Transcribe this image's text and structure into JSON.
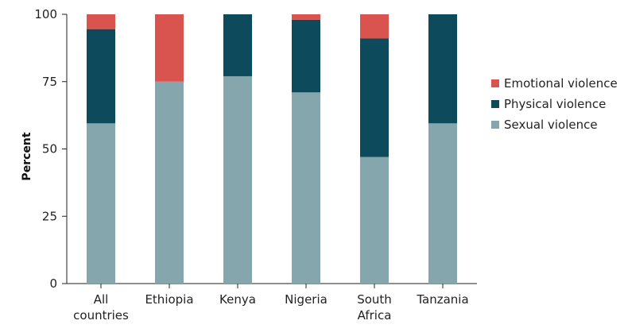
{
  "chart_data": {
    "type": "bar",
    "stacked": true,
    "categories": [
      [
        "All",
        "countries"
      ],
      [
        "Ethiopia"
      ],
      [
        "Kenya"
      ],
      [
        "Nigeria"
      ],
      [
        "South",
        "Africa"
      ],
      [
        "Tanzania"
      ]
    ],
    "series": [
      {
        "name": "Sexual violence",
        "color": "#84a6ac",
        "values": [
          59.5,
          75,
          77,
          71,
          47,
          59.5
        ]
      },
      {
        "name": "Physical violence",
        "color": "#0d4a5b",
        "values": [
          35,
          0,
          23,
          27,
          44,
          40.5
        ]
      },
      {
        "name": "Emotional violence",
        "color": "#d9534f",
        "values": [
          5.5,
          25,
          0,
          2,
          9,
          0
        ]
      }
    ],
    "legend_order": [
      "Emotional violence",
      "Physical violence",
      "Sexual violence"
    ],
    "ylabel": "Percent",
    "xlabel": "",
    "ylim": [
      0,
      100
    ],
    "yticks": [
      0,
      25,
      50,
      75,
      100
    ],
    "grid": false,
    "legend_position": "right"
  }
}
